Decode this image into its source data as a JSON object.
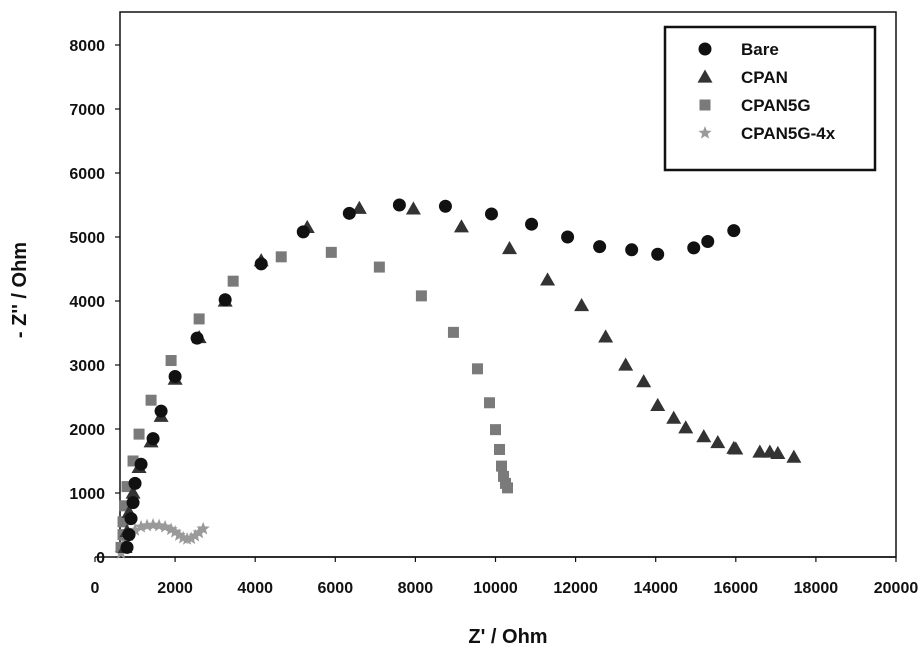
{
  "chart_data": {
    "type": "scatter",
    "title": "",
    "xlabel": "Z' / Ohm",
    "ylabel": "- Z'' / Ohm",
    "xlim": [
      0,
      20000
    ],
    "ylim": [
      0,
      8000
    ],
    "x_ticks": [
      0,
      2000,
      4000,
      6000,
      8000,
      10000,
      12000,
      14000,
      16000,
      18000,
      20000
    ],
    "y_ticks": [
      0,
      1000,
      2000,
      3000,
      4000,
      5000,
      6000,
      7000,
      8000
    ],
    "grid": false,
    "legend_position": "top-right",
    "series": [
      {
        "name": "Bare",
        "marker": "circle",
        "color": "#111111",
        "points": [
          [
            800,
            150
          ],
          [
            850,
            350
          ],
          [
            900,
            600
          ],
          [
            950,
            850
          ],
          [
            1000,
            1150
          ],
          [
            1150,
            1450
          ],
          [
            1450,
            1850
          ],
          [
            1650,
            2280
          ],
          [
            2000,
            2820
          ],
          [
            2550,
            3420
          ],
          [
            3250,
            4020
          ],
          [
            4150,
            4580
          ],
          [
            5200,
            5080
          ],
          [
            6350,
            5370
          ],
          [
            7600,
            5500
          ],
          [
            8750,
            5480
          ],
          [
            9900,
            5360
          ],
          [
            10900,
            5200
          ],
          [
            11800,
            5000
          ],
          [
            12600,
            4850
          ],
          [
            13400,
            4800
          ],
          [
            14050,
            4730
          ],
          [
            14950,
            4830
          ],
          [
            15300,
            4930
          ],
          [
            15950,
            5100
          ]
        ]
      },
      {
        "name": "CPAN",
        "marker": "triangle",
        "color": "#333333",
        "points": [
          [
            750,
            150
          ],
          [
            800,
            400
          ],
          [
            850,
            700
          ],
          [
            950,
            1000
          ],
          [
            1100,
            1400
          ],
          [
            1400,
            1800
          ],
          [
            1650,
            2200
          ],
          [
            2000,
            2780
          ],
          [
            2600,
            3430
          ],
          [
            3250,
            4000
          ],
          [
            4150,
            4630
          ],
          [
            5300,
            5150
          ],
          [
            6600,
            5450
          ],
          [
            7950,
            5440
          ],
          [
            9150,
            5160
          ],
          [
            10350,
            4820
          ],
          [
            11300,
            4330
          ],
          [
            12150,
            3930
          ],
          [
            12750,
            3440
          ],
          [
            13250,
            3000
          ],
          [
            13700,
            2740
          ],
          [
            14050,
            2370
          ],
          [
            14450,
            2170
          ],
          [
            14750,
            2020
          ],
          [
            15200,
            1880
          ],
          [
            15550,
            1790
          ],
          [
            15950,
            1700
          ],
          [
            16000,
            1690
          ],
          [
            16600,
            1640
          ],
          [
            16850,
            1640
          ],
          [
            17050,
            1620
          ],
          [
            17450,
            1560
          ]
        ]
      },
      {
        "name": "CPAN5G",
        "marker": "square",
        "color": "#7a7a7a",
        "points": [
          [
            650,
            150
          ],
          [
            700,
            350
          ],
          [
            700,
            550
          ],
          [
            750,
            800
          ],
          [
            800,
            1100
          ],
          [
            950,
            1500
          ],
          [
            1100,
            1920
          ],
          [
            1400,
            2450
          ],
          [
            1900,
            3070
          ],
          [
            2600,
            3720
          ],
          [
            3450,
            4310
          ],
          [
            4650,
            4690
          ],
          [
            5900,
            4760
          ],
          [
            7100,
            4530
          ],
          [
            8150,
            4080
          ],
          [
            8950,
            3510
          ],
          [
            9550,
            2940
          ],
          [
            9850,
            2410
          ],
          [
            10000,
            1990
          ],
          [
            10100,
            1680
          ],
          [
            10150,
            1420
          ],
          [
            10200,
            1260
          ],
          [
            10250,
            1150
          ],
          [
            10300,
            1080
          ]
        ]
      },
      {
        "name": "CPAN5G-4x",
        "marker": "star",
        "color": "#9a9a9a",
        "points": [
          [
            650,
            60
          ],
          [
            700,
            150
          ],
          [
            750,
            250
          ],
          [
            850,
            340
          ],
          [
            1000,
            420
          ],
          [
            1150,
            470
          ],
          [
            1300,
            490
          ],
          [
            1450,
            500
          ],
          [
            1600,
            490
          ],
          [
            1750,
            470
          ],
          [
            1900,
            430
          ],
          [
            2000,
            390
          ],
          [
            2100,
            340
          ],
          [
            2200,
            300
          ],
          [
            2300,
            280
          ],
          [
            2400,
            290
          ],
          [
            2500,
            330
          ],
          [
            2600,
            380
          ],
          [
            2700,
            440
          ]
        ]
      }
    ]
  }
}
